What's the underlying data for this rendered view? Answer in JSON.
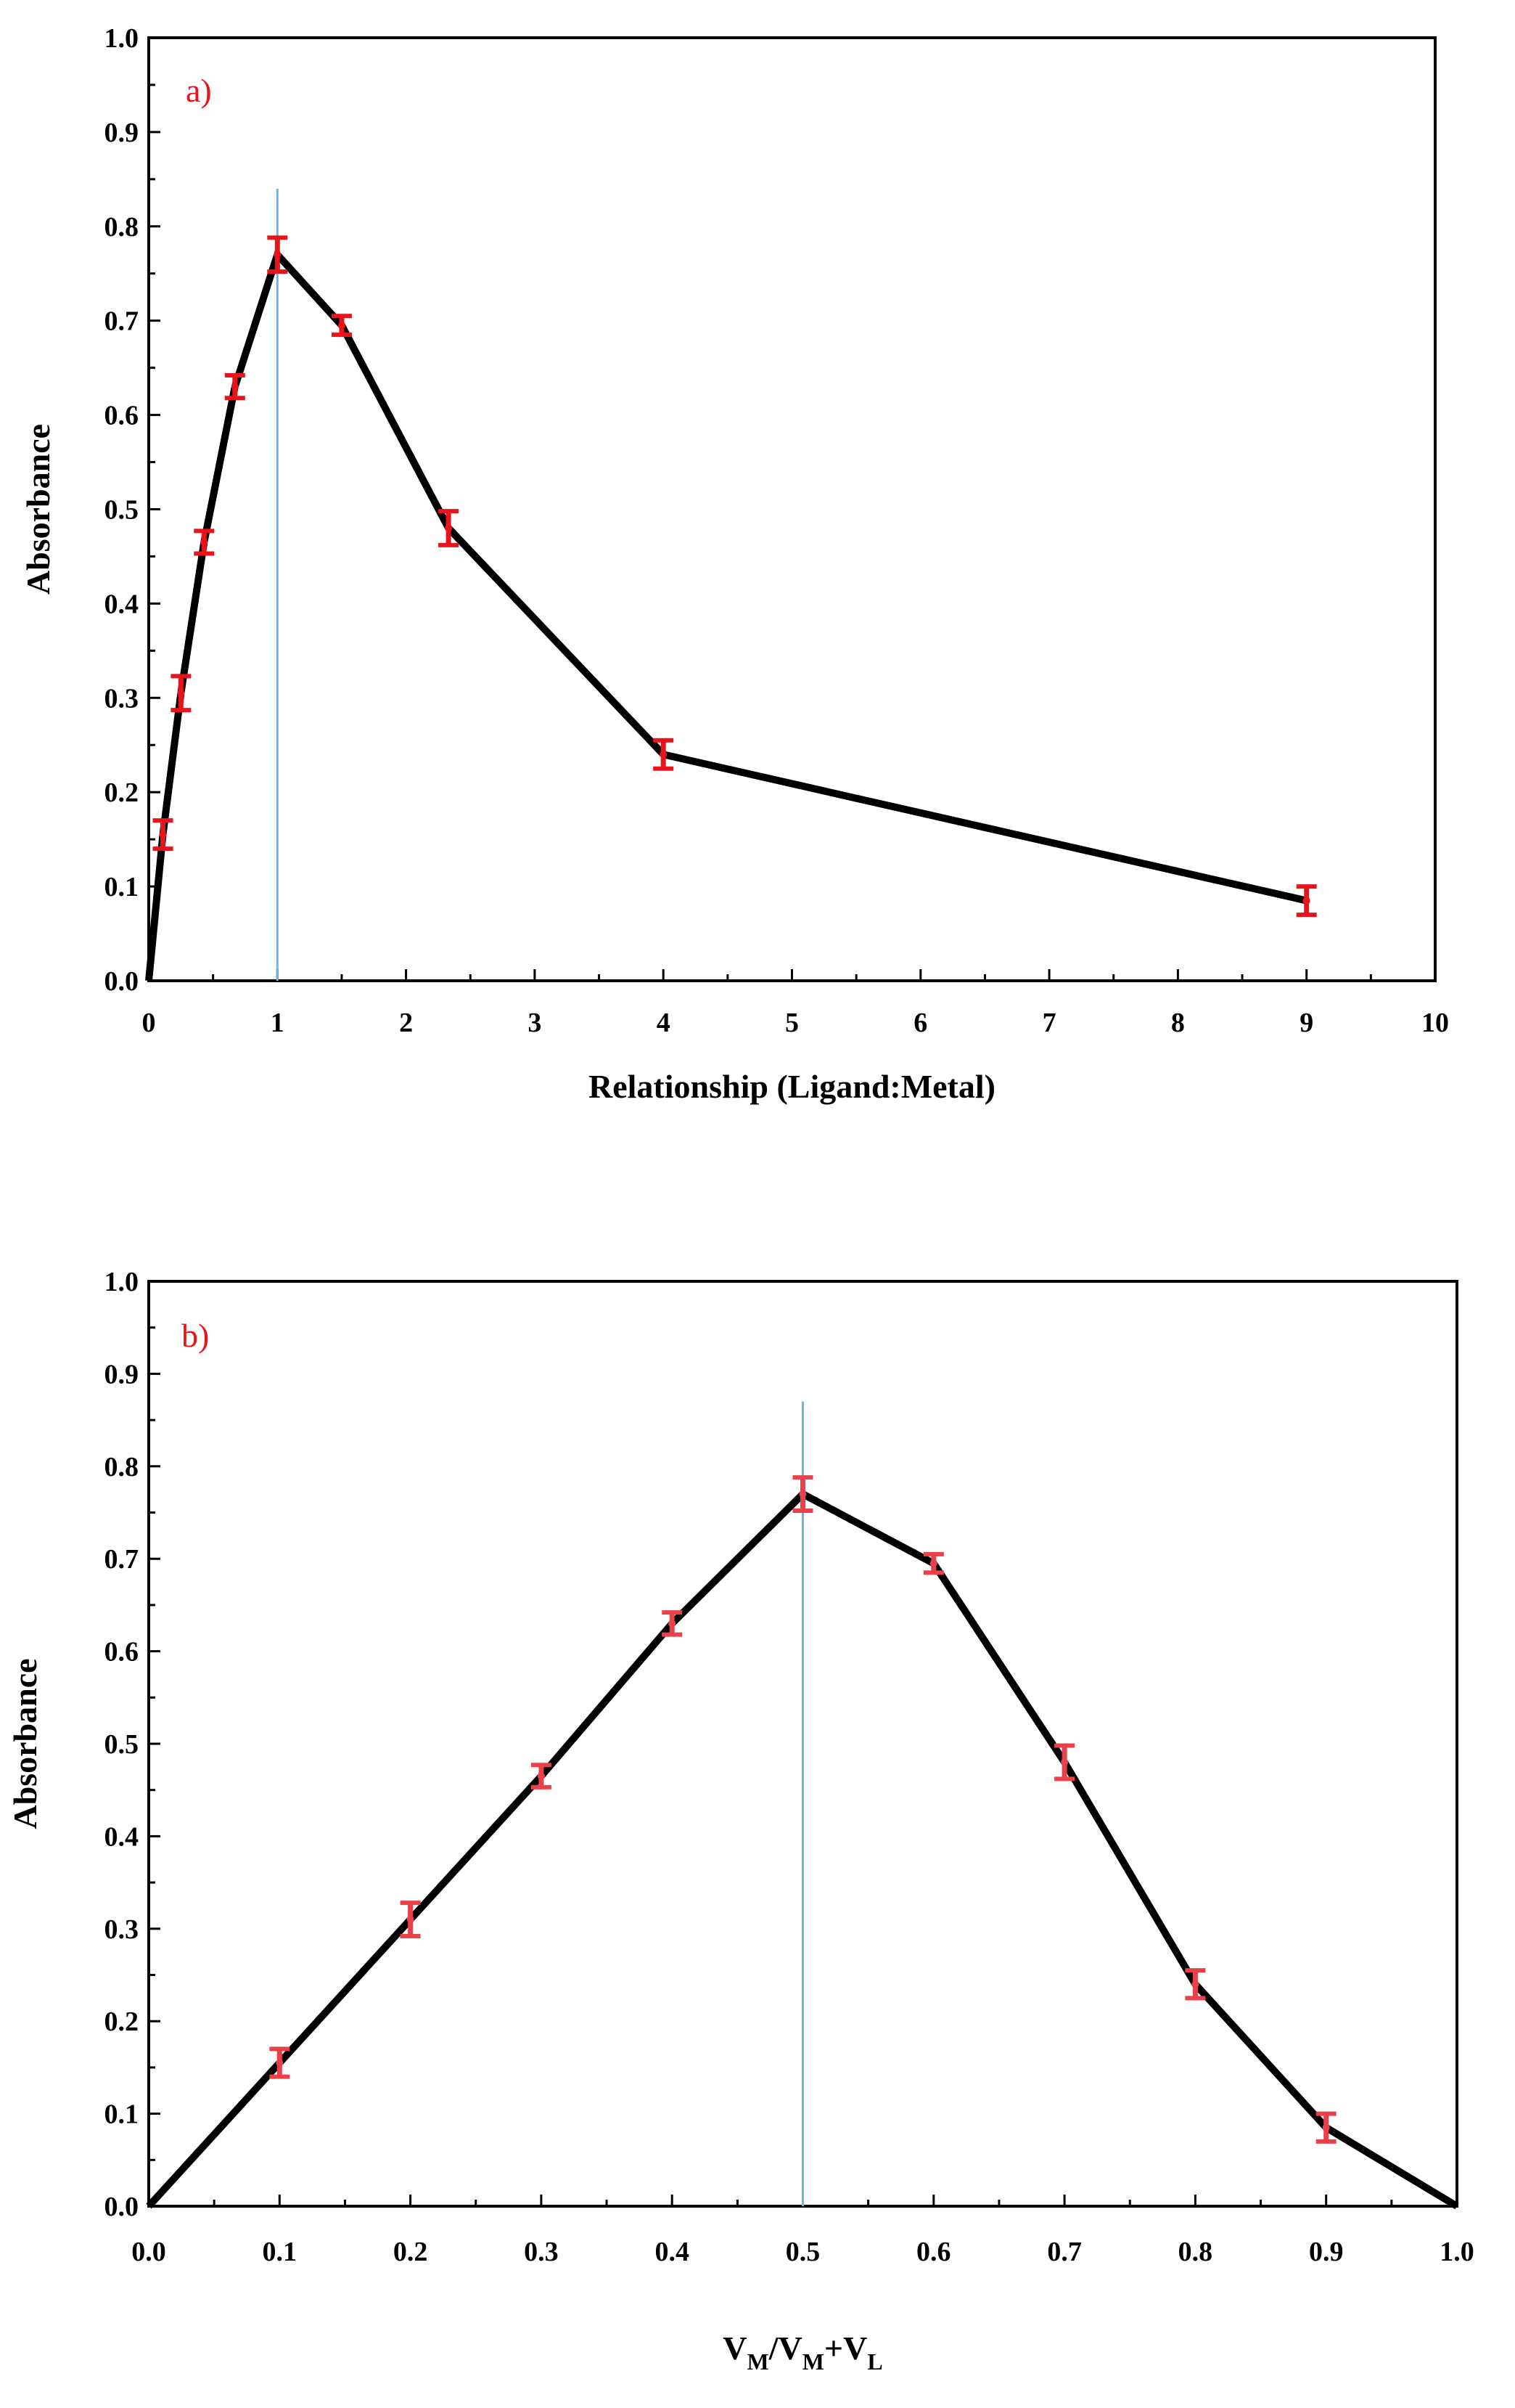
{
  "chart_data": [
    {
      "type": "line",
      "panel_label": "a)",
      "xlabel": "Relationship (Ligand:Metal)",
      "ylabel": "Absorbance",
      "xlim": [
        0,
        10
      ],
      "ylim": [
        0.0,
        1.0
      ],
      "x_ticks": [
        0,
        1,
        2,
        3,
        4,
        5,
        6,
        7,
        8,
        9,
        10
      ],
      "x_tick_labels": [
        "0",
        "1",
        "2",
        "3",
        "4",
        "5",
        "6",
        "7",
        "8",
        "9",
        "10"
      ],
      "y_ticks": [
        0.0,
        0.1,
        0.2,
        0.3,
        0.4,
        0.5,
        0.6,
        0.7,
        0.8,
        0.9,
        1.0
      ],
      "y_tick_labels": [
        "0.0",
        "0.1",
        "0.2",
        "0.3",
        "0.4",
        "0.5",
        "0.6",
        "0.7",
        "0.8",
        "0.9",
        "1.0"
      ],
      "series": [
        {
          "name": "Absorbance",
          "x": [
            0.0,
            0.11,
            0.25,
            0.43,
            0.67,
            1.0,
            1.5,
            2.33,
            4.0,
            9.0
          ],
          "y": [
            0.0,
            0.155,
            0.305,
            0.465,
            0.63,
            0.77,
            0.695,
            0.48,
            0.24,
            0.085
          ],
          "err": [
            0,
            0.015,
            0.018,
            0.012,
            0.012,
            0.018,
            0.01,
            0.018,
            0.015,
            0.015
          ],
          "line_color": "#000000",
          "error_color": "#e8141c"
        }
      ],
      "reference_line": {
        "x": 1.0,
        "y_top": 0.84,
        "color": "#6bb6dd"
      },
      "label_color": "#e8141c"
    },
    {
      "type": "line",
      "panel_label": "b)",
      "xlabel": "VM/VM+VL",
      "xlabel_parts": [
        "V",
        "M",
        "/V",
        "M",
        "+V",
        "L"
      ],
      "ylabel": "Absorbance",
      "xlim": [
        0.0,
        1.0
      ],
      "ylim": [
        0.0,
        1.0
      ],
      "x_ticks": [
        0.0,
        0.1,
        0.2,
        0.3,
        0.4,
        0.5,
        0.6,
        0.7,
        0.8,
        0.9,
        1.0
      ],
      "x_tick_labels": [
        "0.0",
        "0.1",
        "0.2",
        "0.3",
        "0.4",
        "0.5",
        "0.6",
        "0.7",
        "0.8",
        "0.9",
        "1.0"
      ],
      "y_ticks": [
        0.0,
        0.1,
        0.2,
        0.3,
        0.4,
        0.5,
        0.6,
        0.7,
        0.8,
        0.9,
        1.0
      ],
      "y_tick_labels": [
        "0.0",
        "0.1",
        "0.2",
        "0.3",
        "0.4",
        "0.5",
        "0.6",
        "0.7",
        "0.8",
        "0.9",
        "1.0"
      ],
      "series": [
        {
          "name": "Absorbance",
          "x": [
            0.0,
            0.1,
            0.2,
            0.3,
            0.4,
            0.5,
            0.6,
            0.7,
            0.8,
            0.9,
            1.0
          ],
          "y": [
            0.0,
            0.155,
            0.31,
            0.465,
            0.63,
            0.77,
            0.695,
            0.48,
            0.24,
            0.085,
            0.0
          ],
          "err": [
            0,
            0.015,
            0.018,
            0.012,
            0.012,
            0.018,
            0.01,
            0.018,
            0.015,
            0.015,
            0
          ],
          "line_color": "#000000",
          "error_color": "#e8414a"
        }
      ],
      "reference_line": {
        "x": 0.5,
        "y_top": 0.87,
        "color": "#6bb6dd"
      },
      "label_color": "#e8141c"
    }
  ]
}
